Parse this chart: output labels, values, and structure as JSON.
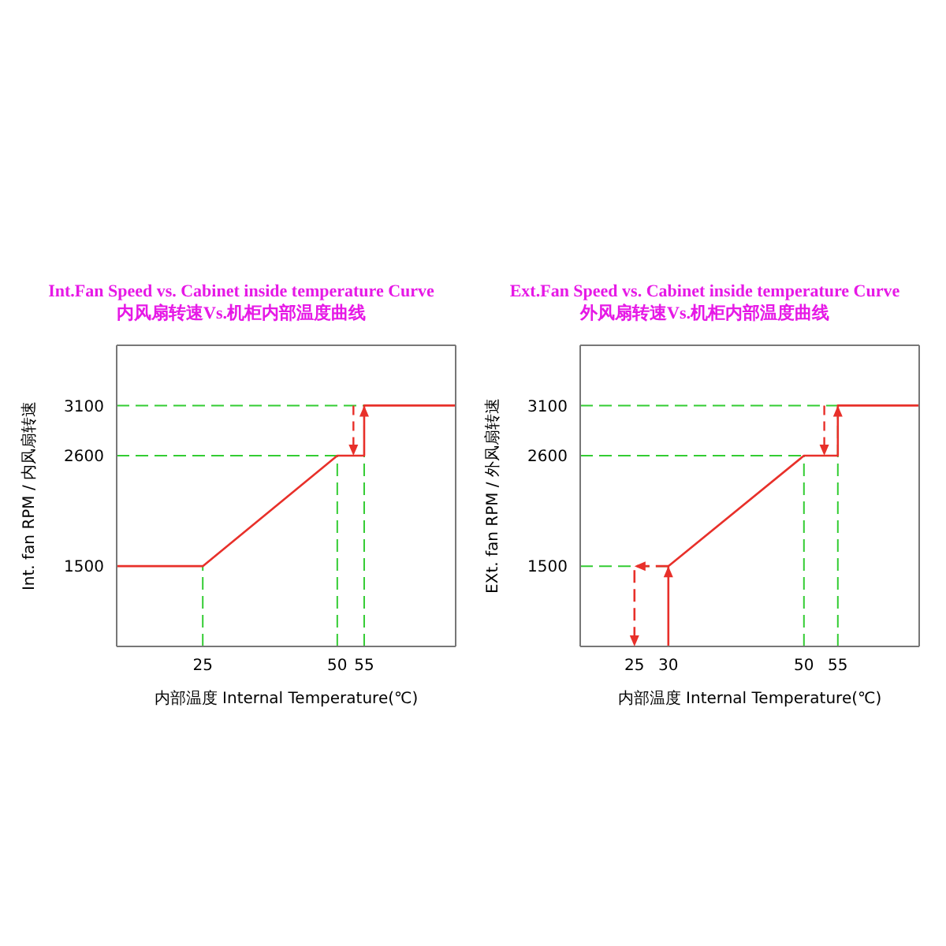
{
  "chart_data": [
    {
      "type": "line",
      "title": "Int.Fan Speed vs. Cabinet inside temperature Curve",
      "subtitle": "内风扇转速Vs.机柜内部温度曲线",
      "xlabel": "内部温度 Internal Temperature(℃)",
      "ylabel": "Int. fan RPM / 内风扇转速",
      "xlim": [
        9,
        72
      ],
      "xticks": [
        25,
        50,
        55
      ],
      "ylim": [
        700,
        3700
      ],
      "yticks": [
        1500,
        2600,
        3100
      ],
      "grid": false,
      "marker": "none",
      "series": [
        {
          "color": "#e8302a",
          "x": [
            9,
            25,
            50,
            55,
            55,
            72
          ],
          "values": [
            1500,
            1500,
            2600,
            2600,
            3100,
            3100
          ],
          "line_style": "solid"
        }
      ],
      "ref_lines": [
        {
          "axis": "y",
          "value": 3100,
          "color": "#33cc33",
          "line_style": "dashed"
        },
        {
          "axis": "y",
          "value": 2600,
          "color": "#33cc33",
          "line_style": "dashed"
        },
        {
          "axis": "x",
          "value": 25,
          "color": "#33cc33",
          "line_style": "dashed"
        },
        {
          "axis": "x",
          "value": 50,
          "color": "#33cc33",
          "line_style": "dashed"
        },
        {
          "axis": "x",
          "value": 55,
          "color": "#33cc33",
          "line_style": "dashed"
        }
      ]
    },
    {
      "type": "line",
      "title": "Ext.Fan Speed vs. Cabinet inside temperature Curve",
      "subtitle": "外风扇转速Vs.机柜内部温度曲线",
      "xlabel": "内部温度 Internal Temperature(℃)",
      "ylabel": "EXt. fan RPM / 外风扇转速",
      "xlim": [
        17,
        67
      ],
      "xticks": [
        25,
        30,
        50,
        55
      ],
      "ylim": [
        700,
        3700
      ],
      "yticks": [
        1500,
        2600,
        3100
      ],
      "grid": false,
      "marker": "none",
      "series": [
        {
          "color": "#e8302a",
          "x": [
            30,
            30,
            50,
            55,
            55,
            67
          ],
          "values": [
            700,
            1500,
            2600,
            2600,
            3100,
            3100
          ],
          "line_style": "solid"
        },
        {
          "color": "#e8302a",
          "x": [
            30,
            25,
            25
          ],
          "values": [
            1500,
            1500,
            700
          ],
          "line_style": "dashed"
        }
      ],
      "ref_lines": [
        {
          "axis": "y",
          "value": 3100,
          "color": "#33cc33",
          "line_style": "dashed"
        },
        {
          "axis": "y",
          "value": 2600,
          "color": "#33cc33",
          "line_style": "dashed"
        },
        {
          "axis": "y",
          "value": 1500,
          "color": "#33cc33",
          "line_style": "dashed"
        },
        {
          "axis": "x",
          "value": 50,
          "color": "#33cc33",
          "line_style": "dashed"
        },
        {
          "axis": "x",
          "value": 55,
          "color": "#33cc33",
          "line_style": "dashed"
        }
      ]
    }
  ]
}
